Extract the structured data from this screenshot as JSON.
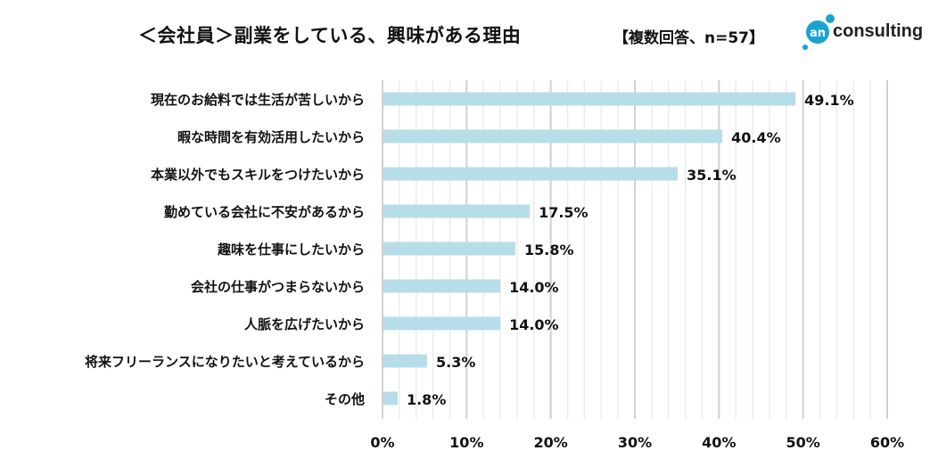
{
  "title": "＜会社員＞副業をしている、興味がある理由",
  "subtitle": "【複数回答、n=57】",
  "logo": {
    "mark": "an",
    "text": "consulting",
    "color": "#1aa3d0"
  },
  "colors": {
    "bar": "#b7dde8",
    "major_grid": "#d0d0d0",
    "minor_grid": "#ececec"
  },
  "chart_data": {
    "type": "bar",
    "orientation": "horizontal",
    "categories": [
      "現在のお給料では生活が苦しいから",
      "暇な時間を有効活用したいから",
      "本業以外でもスキルをつけたいから",
      "勤めている会社に不安があるから",
      "趣味を仕事にしたいから",
      "会社の仕事がつまらないから",
      "人脈を広げたいから",
      "将来フリーランスになりたいと考えているから",
      "その他"
    ],
    "values": [
      49.1,
      40.4,
      35.1,
      17.5,
      15.8,
      14.0,
      14.0,
      5.3,
      1.8
    ],
    "value_labels": [
      "49.1%",
      "40.4%",
      "35.1%",
      "17.5%",
      "15.8%",
      "14.0%",
      "14.0%",
      "5.3%",
      "1.8%"
    ],
    "xlim": [
      0,
      60
    ],
    "xticks": [
      0,
      10,
      20,
      30,
      40,
      50,
      60
    ],
    "xtick_labels": [
      "0%",
      "10%",
      "20%",
      "30%",
      "40%",
      "50%",
      "60%"
    ],
    "minor_step": 2,
    "grid": true
  }
}
